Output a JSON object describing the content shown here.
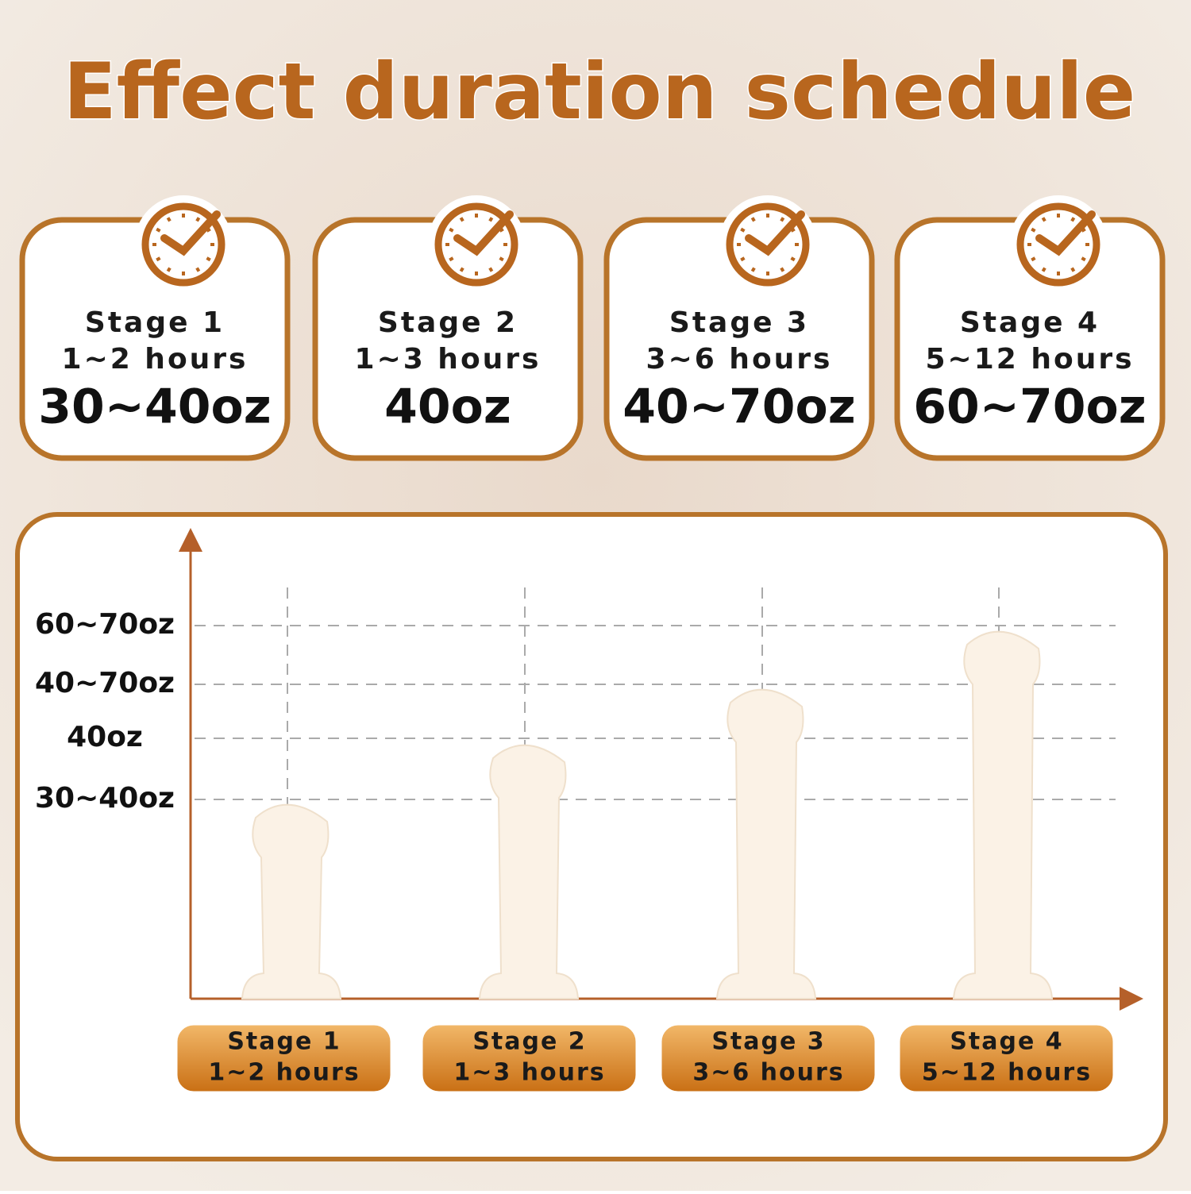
{
  "header": {
    "title": "Effect duration schedule"
  },
  "cards": [
    {
      "stage": "Stage 1",
      "hours": "1~2 hours",
      "amount": "30~40oz"
    },
    {
      "stage": "Stage 2",
      "hours": "1~3 hours",
      "amount": "40oz"
    },
    {
      "stage": "Stage 3",
      "hours": "3~6 hours",
      "amount": "40~70oz"
    },
    {
      "stage": "Stage 4",
      "hours": "5~12 hours",
      "amount": "60~70oz"
    }
  ],
  "chart": {
    "y_labels": [
      "60~70oz",
      "40~70oz",
      "40oz",
      "30~40oz"
    ]
  }
}
